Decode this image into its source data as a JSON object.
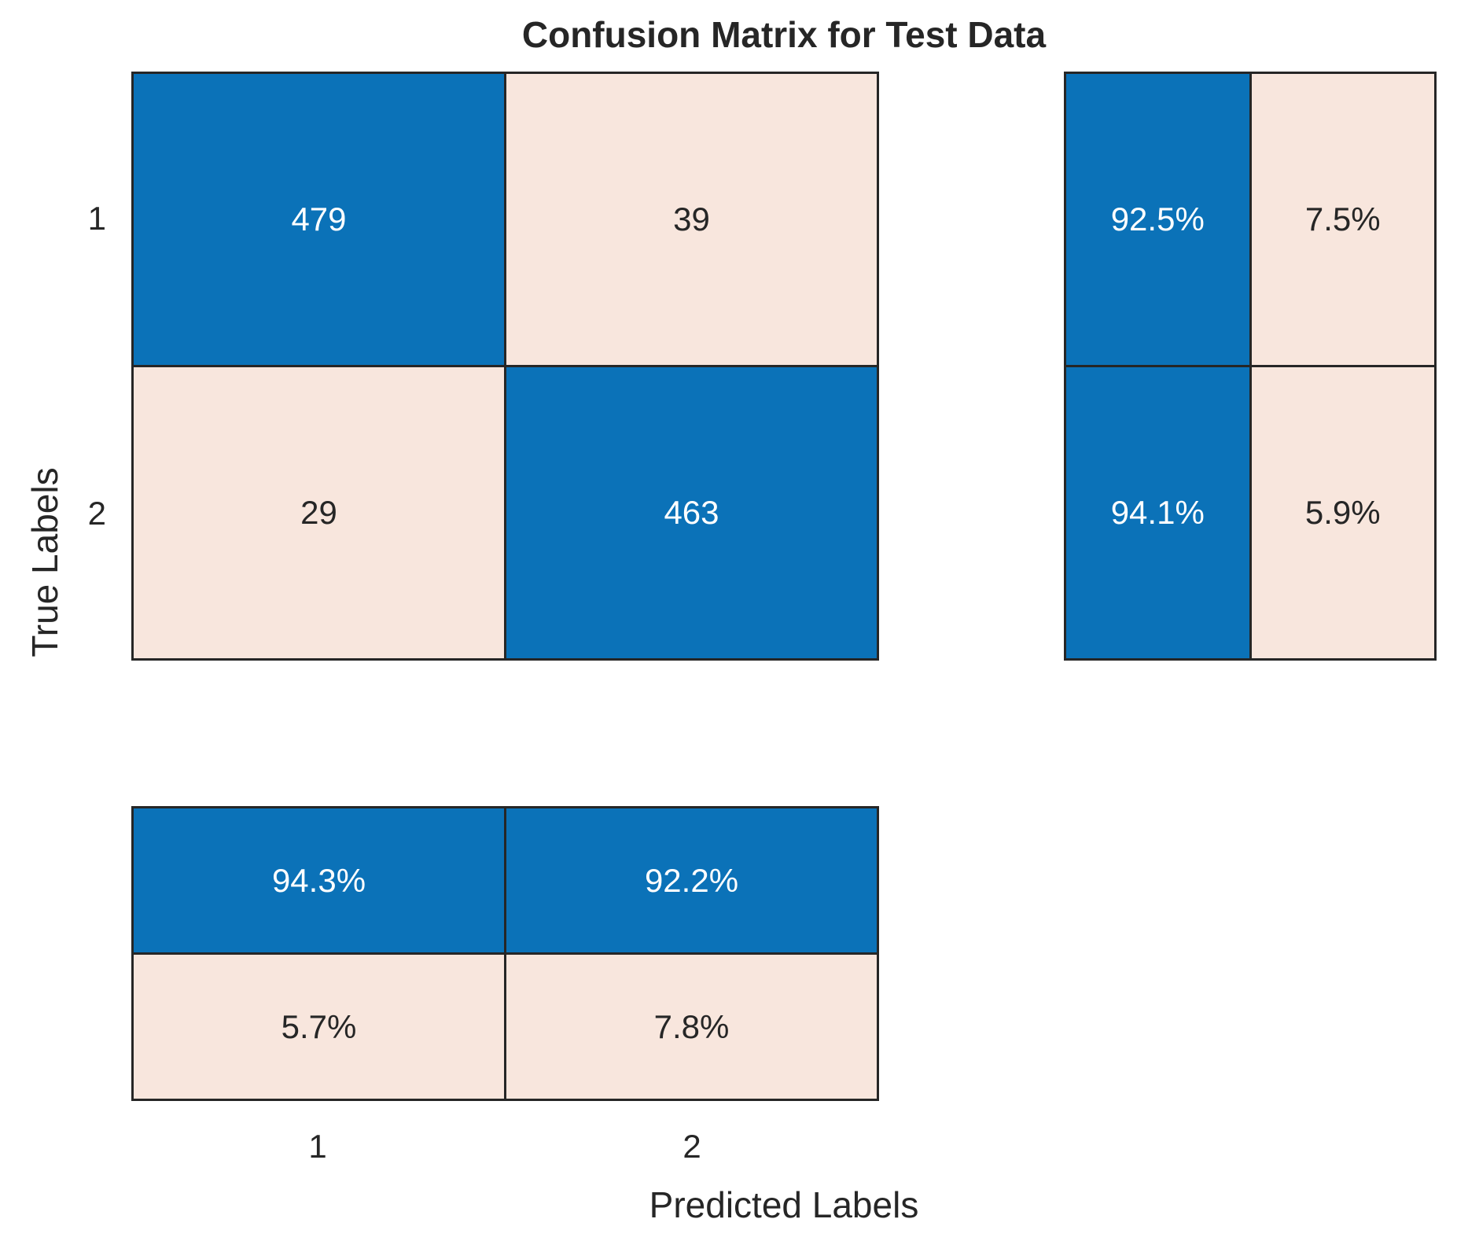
{
  "title": "Confusion Matrix for Test Data",
  "axes": {
    "x_label": "Predicted Labels",
    "y_label": "True Labels",
    "x_ticks": [
      "1",
      "2"
    ],
    "y_ticks": [
      "1",
      "2"
    ]
  },
  "matrix": {
    "cells": [
      {
        "text": "479"
      },
      {
        "text": "39"
      },
      {
        "text": "29"
      },
      {
        "text": "463"
      }
    ]
  },
  "row_summary": {
    "cells": [
      {
        "text": "92.5%"
      },
      {
        "text": "7.5%"
      },
      {
        "text": "94.1%"
      },
      {
        "text": "5.9%"
      }
    ]
  },
  "col_summary": {
    "cells": [
      {
        "text": "94.3%"
      },
      {
        "text": "92.2%"
      },
      {
        "text": "5.7%"
      },
      {
        "text": "7.8%"
      }
    ]
  },
  "colors": {
    "diagonal": "#0b72b8",
    "off_diagonal": "#f8e6dd",
    "border": "#262626",
    "text": "#262626",
    "text_on_diagonal": "#ffffff",
    "background": "#ffffff"
  },
  "chart_data": {
    "type": "heatmap",
    "title": "Confusion Matrix for Test Data",
    "xlabel": "Predicted Labels",
    "ylabel": "True Labels",
    "x_categories": [
      "1",
      "2"
    ],
    "y_categories": [
      "1",
      "2"
    ],
    "values": [
      [
        479,
        39
      ],
      [
        29,
        463
      ]
    ],
    "row_summary_percent": [
      [
        92.5,
        7.5
      ],
      [
        94.1,
        5.9
      ]
    ],
    "column_summary_percent": [
      [
        94.3,
        92.2
      ],
      [
        5.7,
        7.8
      ]
    ],
    "legend": "none",
    "grid": "off"
  }
}
